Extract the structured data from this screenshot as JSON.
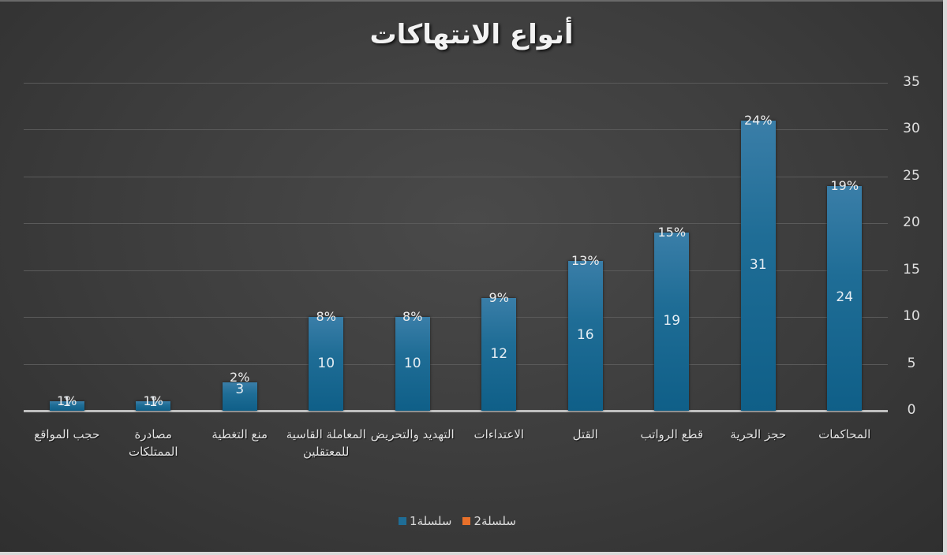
{
  "chart_data": {
    "type": "bar",
    "title": "أنواع الانتهاكات",
    "xlabel": "",
    "ylabel": "",
    "ylim": [
      0,
      35
    ],
    "yticks": [
      "0",
      "5",
      "10",
      "15",
      "20",
      "25",
      "30",
      "35"
    ],
    "y_axis_position": "right",
    "grid": true,
    "legend_position": "bottom",
    "categories": [
      "المحاكمات",
      "حجز الحرية",
      "قطع الرواتب",
      "القتل",
      "الاعتداءات",
      "التهديد والتحريض",
      "المعاملة القاسية للمعتقلين",
      "منع التغطية",
      "مصادرة الممتلكات",
      "حجب المواقع"
    ],
    "series": [
      {
        "name": "سلسلة1",
        "color": "#1f6d96",
        "values": [
          24,
          31,
          19,
          16,
          12,
          10,
          10,
          3,
          1,
          1
        ]
      },
      {
        "name": "سلسلة2",
        "color": "#e8702a",
        "values": [
          "19%",
          "24%",
          "15%",
          "13%",
          "9%",
          "8%",
          "8%",
          "2%",
          "1%",
          "1%"
        ]
      }
    ],
    "percent_labels": [
      "19%",
      "24%",
      "15%",
      "13%",
      "9%",
      "8%",
      "8%",
      "2%",
      "1%",
      "1%"
    ]
  },
  "ui": {
    "background": "#3c3c3c",
    "bar_color": "#1f6d96",
    "series2_color": "#e8702a",
    "text_color": "#e6e6e6"
  }
}
